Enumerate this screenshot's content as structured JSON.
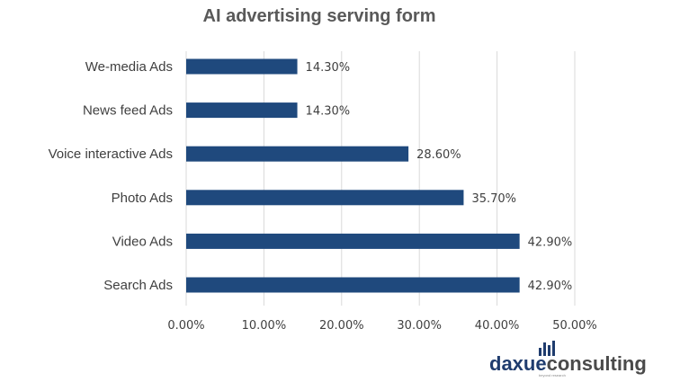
{
  "chart_data": {
    "type": "bar",
    "orientation": "horizontal",
    "title": "AI advertising serving form",
    "categories": [
      "We-media Ads",
      "News feed Ads",
      "Voice interactive Ads",
      "Photo Ads",
      "Video Ads",
      "Search Ads"
    ],
    "values": [
      14.3,
      14.3,
      28.6,
      35.7,
      42.9,
      42.9
    ],
    "value_labels": [
      "14.30%",
      "14.30%",
      "28.60%",
      "35.70%",
      "42.90%",
      "42.90%"
    ],
    "x_ticks": [
      "0.00%",
      "10.00%",
      "20.00%",
      "30.00%",
      "40.00%",
      "50.00%"
    ],
    "xlim": [
      0,
      50
    ],
    "xlabel": "",
    "ylabel": "",
    "grid": "vertical",
    "legend": "none",
    "bar_color": "#1f497d"
  },
  "logo": {
    "part1": "daxue",
    "part2": "consulting",
    "tagline": "beyond research",
    "color_part1": "#1f3c6e",
    "color_part2": "#4a4a4a"
  }
}
